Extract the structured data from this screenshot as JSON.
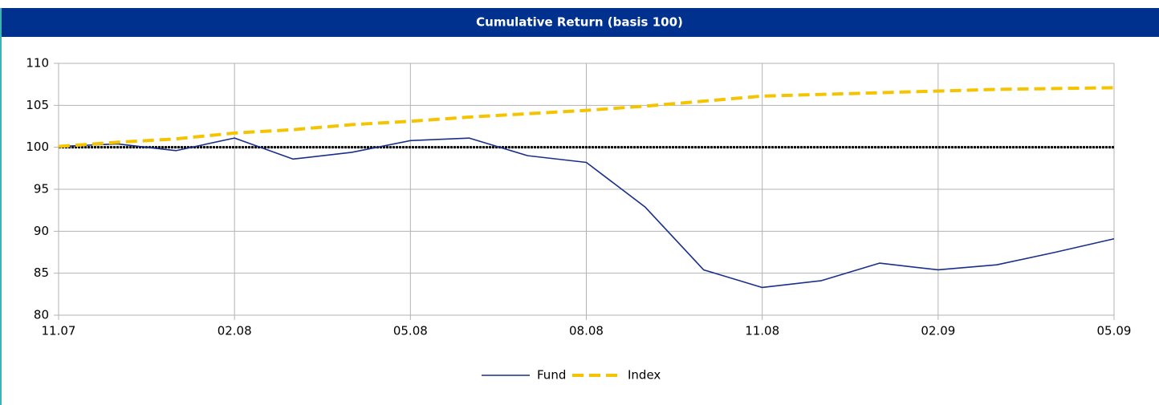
{
  "chart_data": {
    "type": "line",
    "title": "Cumulative Return (basis 100)",
    "categories": [
      "11.07",
      null,
      null,
      "02.08",
      null,
      null,
      "05.08",
      null,
      null,
      "08.08",
      null,
      null,
      "11.08",
      null,
      null,
      "02.09",
      null,
      null,
      "05.09"
    ],
    "series": [
      {
        "name": "Fund",
        "color": "#1a2f8a",
        "style": "solid",
        "values": [
          100.1,
          100.4,
          99.6,
          101.1,
          98.6,
          99.4,
          100.8,
          101.1,
          99.0,
          98.2,
          92.9,
          85.4,
          83.3,
          84.1,
          86.2,
          85.4,
          86.0,
          87.5,
          89.1
        ]
      },
      {
        "name": "Index",
        "color": "#f5c400",
        "style": "dashed",
        "values": [
          100.1,
          100.6,
          101.0,
          101.7,
          102.1,
          102.7,
          103.1,
          103.6,
          104.0,
          104.4,
          104.9,
          105.5,
          106.1,
          106.3,
          106.5,
          106.7,
          106.9,
          107.0,
          107.1
        ]
      }
    ],
    "baseline": 100,
    "ylim": [
      80,
      110
    ],
    "yticks": [
      80,
      85,
      90,
      95,
      100,
      105,
      110
    ],
    "grid": true,
    "legend": "bottom"
  }
}
